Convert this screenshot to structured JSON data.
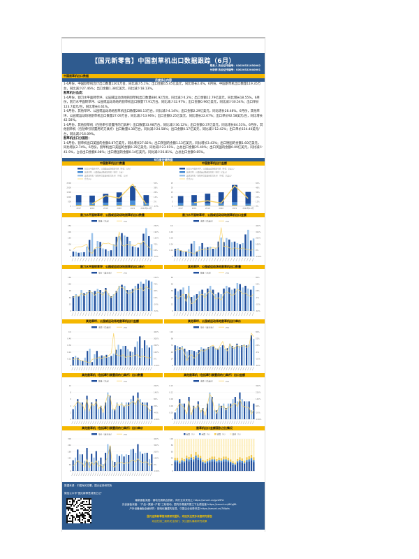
{
  "header": {
    "title": "【国元新零售】中国割草机出口数据跟踪（6月）",
    "analyst1": "联系人 执业证书编号：S0020521050002",
    "analyst2": "分析师 执业证书编号：S0020522040001"
  },
  "section_title": "中国割草机出口数据",
  "core_title": "月度核心内容",
  "paragraphs": [
    {
      "bold": false,
      "text": "1-6月份，中国割草机合计出口数量1201万台，同比减少5.1%；出口金额15.45亿美元，同比增长2.4%。6月份，中国割草机出口数量119.35万台，同比减少27.46%；出口金额1.38亿美元，同比减少18.13%。"
    },
    {
      "bold": true,
      "text": "割草机分品类："
    },
    {
      "bold": false,
      "text": "1-6月份，割刀水平面转草坪、公园或运动场地的割草机出口数量880.92万台，同比减少4.2%；出口金额12.79亿美元，同比增长18.55%。6月份，割刀水平面转草坪、公园或运动场地的割草机出口数量77.91万台，同比减少32.97%；出口金额0.96亿美元，同比减少30.54%；出口单价123.7美元/台，同比增长4.61%。"
    },
    {
      "bold": false,
      "text": "1-6月份，其他草坪、公园或运动场地割草机出口数量286.13万台，同比减少4.14%；出口金额2.29亿美元，同比增长28.48%。6月份，其他草坪、公园或运动场地割草机出口数量27.09万台，同比减少13.96%；出口金额0.25亿美元，同比增长22.67%；出口单价92.58美元/台，同比增长42.58%。"
    },
    {
      "bold": false,
      "text": "1-6月份，其他割草机（包括牵引装置用的刀具杆）出口数量33.98万台，同比减少36.12%；出口金额0.37亿美元，同比增长84.51%。6月份，其他割草机（包括牵引装置用的刀具杆）出口数量4.38万台，同比减少24.58%；出口金额0.17亿美元，同比减少12.42%；出口单价154.40美元/台，同比减少16.09%。"
    },
    {
      "bold": true,
      "text": "割草机出口分国别："
    },
    {
      "bold": false,
      "text": "1-6月份，割草机出口美国的金额8.87亿美元，同比增长27.82%；出口英国的金额1.13亿美元，同比增长3.43%；出口德国的金额1.60亿美元，同比增长2.74%。6月份，割草机出口美国的金额0.35亿美元，同比减少23.91%，占总出口金额25.49%；出口英国的金额0.09亿美元，同比减少41.9%，占总出口金额6.08%；出口德国的金额0.14亿美元，同比减少26.81%，占总出口金额9.85%。"
    }
  ],
  "key_data_title": "6月度关键数据",
  "chart_data": [
    {
      "id": "c0",
      "type": "bar",
      "stacked": true,
      "title": "中国割草机出口数量",
      "categories": [
        "2017",
        "2018",
        "2019",
        "2020",
        "2021",
        "2022年1-6月"
      ],
      "series": [
        {
          "name": "其他割草机（包括牵引装置用的刀具杆）（单位：万台）",
          "values": [
            100,
            90,
            80,
            90,
            100,
            40
          ]
        },
        {
          "name": "其他草坪、公园或运动场地割草机（单位：万台）",
          "values": [
            300,
            300,
            300,
            350,
            500,
            300
          ]
        },
        {
          "name": "割刀水平面转草坪、公园或运动场地割草机（单位：万台）",
          "values": [
            800,
            750,
            950,
            1050,
            1600,
            860
          ]
        }
      ],
      "line": {
        "name": "合计yoy",
        "values": [
          null,
          -4,
          17,
          11,
          47,
          -5
        ]
      },
      "ylim": [
        0,
        2500
      ],
      "y2lim": [
        -10,
        50
      ]
    },
    {
      "id": "c1",
      "type": "bar",
      "stacked": true,
      "title": "中国割草机出口金额",
      "categories": [
        "2017",
        "2018",
        "2019",
        "2020",
        "2021",
        "2022年1-6月"
      ],
      "series": [
        {
          "name": "其他割草机（包括牵引装置用的刀具杆）（单位：亿美元）",
          "values": [
            0.4,
            0.5,
            0.5,
            0.5,
            0.8,
            0.4
          ]
        },
        {
          "name": "其他草坪、公园或运动场地割草机（单位：亿美元）",
          "values": [
            3,
            3.5,
            2.5,
            2.3,
            3.5,
            2.2
          ]
        },
        {
          "name": "割刀水平面转草坪、公园或运动场地割草机（单位：亿美元）",
          "values": [
            7.5,
            8,
            10.5,
            12.2,
            18.7,
            12.8
          ]
        }
      ],
      "line": {
        "name": "合计yoy",
        "values": [
          null,
          9,
          14,
          8,
          53,
          20
        ]
      },
      "ylim": [
        0,
        25
      ],
      "y2lim": [
        0,
        60
      ]
    },
    {
      "id": "c2",
      "type": "bar",
      "title": "割刀水平面转草坪、公园或运动场地割草机出口数量",
      "series": [
        {
          "name": "数量（万台）",
          "values": [
            40,
            38,
            30,
            33,
            35,
            80,
            135,
            190,
            60,
            125,
            118,
            65,
            58,
            45,
            50,
            100,
            160,
            165,
            190,
            170,
            160,
            125,
            82,
            78,
            72,
            110,
            185,
            230,
            165,
            100
          ]
        }
      ],
      "line": {
        "name": "yoy",
        "values": [
          20,
          40,
          45,
          45,
          55,
          70,
          -5,
          -20,
          30,
          40,
          35,
          80,
          75,
          80,
          70,
          60,
          50,
          190,
          60,
          50,
          70,
          60,
          60,
          55,
          80,
          70,
          100,
          60,
          40,
          10
        ]
      },
      "ylim": [
        0,
        250
      ],
      "y2lim": [
        -50,
        250
      ]
    },
    {
      "id": "c3",
      "type": "bar",
      "title": "割刀水平面转草坪、公园或运动场地割草机出口金额",
      "series": [
        {
          "name": "金额（亿美元）",
          "values": [
            0.15,
            0.16,
            0.12,
            0.1,
            0.09,
            0.14,
            0.25,
            0.3,
            0.1,
            0.2,
            0.26,
            0.17,
            0.18,
            0.19,
            0.15,
            0.17,
            0.29,
            0.37,
            0.28,
            0.36,
            0.33,
            0.28,
            0.29,
            0.26,
            0.24,
            0.26,
            0.43,
            0.52,
            0.31,
            0.35
          ]
        }
      ],
      "line": {
        "name": "yoy",
        "values": [
          0,
          10,
          -5,
          -20,
          -15,
          -40,
          -40,
          -60,
          -20,
          0,
          10,
          20,
          15,
          30,
          50,
          30,
          60,
          370,
          60,
          70,
          40,
          20,
          40,
          30,
          20,
          40,
          20,
          10,
          0,
          10
        ]
      },
      "ylim": [
        0,
        0.6
      ],
      "y2lim": [
        -100,
        400
      ]
    },
    {
      "id": "c4",
      "type": "bar",
      "title": "割刀水平面转草坪、公园或运动场地割草机出口单价",
      "series": [
        {
          "name": "单价（美元/台）",
          "values": [
            70,
            80,
            70,
            100,
            85,
            90,
            100,
            90,
            95,
            105,
            100,
            90,
            110,
            85,
            70,
            80,
            95,
            120,
            125,
            120,
            100,
            100,
            105,
            120,
            130,
            140,
            130,
            150,
            145,
            140
          ]
        }
      ],
      "line": {
        "name": "yoy",
        "values": [
          10,
          20,
          15,
          30,
          20,
          25,
          40,
          30,
          20,
          35,
          30,
          20,
          45,
          25,
          10,
          20,
          35,
          60,
          55,
          50,
          30,
          30,
          35,
          50,
          45,
          55,
          40,
          60,
          50,
          45
        ]
      },
      "ylim": [
        0,
        160
      ],
      "y2lim": [
        -50,
        100
      ]
    },
    {
      "id": "c5",
      "type": "bar",
      "title": "其他草坪、公园或运动场地割草机出口数量",
      "series": [
        {
          "name": "数量（万台）",
          "values": [
            40,
            35,
            38,
            42,
            30,
            45,
            25,
            28,
            30,
            35,
            38,
            32,
            40,
            45,
            38,
            30,
            33,
            30,
            40,
            45,
            42,
            38,
            40,
            50,
            48,
            42,
            45,
            40,
            38,
            45
          ]
        }
      ],
      "line": {
        "name": "yoy",
        "values": [
          5,
          -10,
          0,
          10,
          -20,
          15,
          -30,
          -25,
          -10,
          5,
          10,
          -5,
          15,
          25,
          10,
          -10,
          -5,
          -15,
          10,
          20,
          15,
          5,
          10,
          30,
          25,
          10,
          15,
          5,
          0,
          10
        ]
      },
      "ylim": [
        0,
        60
      ],
      "y2lim": [
        -60,
        80
      ]
    },
    {
      "id": "c6",
      "type": "bar",
      "title": "其他草坪、公园或运动场地割草机出口金额",
      "series": [
        {
          "name": "金额（亿美元）",
          "values": [
            0.15,
            0.17,
            0.14,
            0.1,
            0.08,
            0.14,
            0.26,
            0.3,
            0.06,
            0.2,
            0.26,
            0.16,
            0.18,
            0.17,
            0.19,
            0.15,
            0.17,
            0.21,
            0.28,
            0.37,
            0.29,
            0.35,
            0.35,
            0.29,
            0.25,
            0.24,
            0.33,
            0.43,
            0.52,
            0.31,
            0.45,
            0.36,
            0.32,
            0.36
          ]
        }
      ],
      "line": {
        "name": "yoy",
        "values": [
          -10,
          0,
          -5,
          -20,
          -30,
          -40,
          -50,
          -60,
          -10,
          0,
          10,
          20,
          0,
          30,
          20,
          50,
          80,
          380,
          60,
          50,
          40,
          60,
          20,
          40,
          30,
          40,
          50,
          60,
          20,
          40,
          30,
          20,
          10,
          30
        ]
      },
      "ylim": [
        0,
        0.6
      ],
      "y2lim": [
        -100,
        400
      ]
    },
    {
      "id": "c7",
      "type": "bar",
      "title": "其他草坪、公园或运动场地割草机出口单价",
      "series": [
        {
          "name": "单价（美元/台）",
          "values": [
            72,
            70,
            65,
            70,
            60,
            50,
            55,
            55,
            52,
            48,
            55,
            65,
            60,
            60,
            65,
            70,
            68,
            62,
            60,
            65,
            72,
            60,
            62,
            78,
            70,
            65,
            78,
            70,
            72,
            75,
            72,
            75,
            108,
            95
          ]
        }
      ],
      "line": {
        "name": "yoy",
        "values": [
          0,
          10,
          5,
          15,
          -10,
          -40,
          -20,
          -15,
          -30,
          -20,
          -10,
          5,
          0,
          5,
          10,
          20,
          25,
          10,
          5,
          25,
          40,
          10,
          0,
          30,
          15,
          10,
          25,
          15,
          20,
          25,
          15,
          20,
          75,
          60
        ]
      },
      "ylim": [
        0,
        120
      ],
      "y2lim": [
        -60,
        80
      ]
    },
    {
      "id": "c8",
      "type": "bar",
      "title": "其他割草机（包括牵引装置用的刀具杆）出口数量",
      "series": [
        {
          "name": "数量（万台）",
          "values": [
            3,
            4,
            6,
            5,
            5,
            3,
            7,
            3,
            5,
            4,
            6,
            3,
            4,
            2,
            5,
            8,
            7,
            3,
            3,
            5,
            4,
            5,
            4,
            5,
            5,
            6,
            7,
            5,
            8,
            6,
            5,
            5,
            5,
            3,
            4
          ]
        }
      ],
      "line": {
        "name": "yoy",
        "values": [
          10,
          30,
          60,
          40,
          30,
          -20,
          80,
          -30,
          40,
          20,
          60,
          -10,
          20,
          -40,
          50,
          120,
          100,
          0,
          -20,
          40,
          20,
          40,
          10,
          30,
          20,
          50,
          60,
          30,
          90,
          40,
          30,
          20,
          20,
          -30,
          -10
        ]
      },
      "ylim": [
        0,
        10
      ],
      "y2lim": [
        -100,
        200
      ]
    },
    {
      "id": "c9",
      "type": "bar",
      "title": "其他割草机（包括牵引装置用的刀具杆）出口金额",
      "series": [
        {
          "name": "金额（亿美元）",
          "values": [
            0.03,
            0.05,
            0.09,
            0.07,
            0.07,
            0.03,
            0.1,
            0.03,
            0.06,
            0.05,
            0.08,
            0.04,
            0.05,
            0.02,
            0.07,
            0.12,
            0.1,
            0.04,
            0.04,
            0.07,
            0.06,
            0.07,
            0.05,
            0.07,
            0.07,
            0.09,
            0.1,
            0.08,
            0.12,
            0.09,
            0.08,
            0.08,
            0.08,
            0.04,
            0.07
          ]
        }
      ],
      "line": {
        "name": "yoy",
        "values": [
          0,
          40,
          90,
          60,
          40,
          -40,
          120,
          -50,
          50,
          30,
          80,
          -20,
          30,
          -60,
          80,
          200,
          150,
          20,
          -30,
          60,
          40,
          60,
          10,
          50,
          40,
          80,
          90,
          50,
          140,
          60,
          50,
          40,
          40,
          -40,
          10
        ]
      },
      "ylim": [
        0,
        0.15
      ],
      "y2lim": [
        -100,
        300
      ]
    },
    {
      "id": "c10",
      "type": "bar",
      "title": "其他割草机（包括牵引装置用的刀具杆）出口单价",
      "series": [
        {
          "name": "单价（美元/台）",
          "values": [
            100,
            125,
            200,
            155,
            155,
            95,
            215,
            85,
            160,
            125,
            185,
            95,
            125,
            65,
            170,
            250,
            230,
            95,
            85,
            155,
            140,
            155,
            135,
            155,
            150,
            200,
            205,
            170,
            250,
            180,
            160,
            170,
            170,
            110,
            155
          ]
        }
      ],
      "line": {
        "name": "yoy",
        "values": [
          -20,
          10,
          60,
          30,
          20,
          -40,
          80,
          -50,
          40,
          -10,
          60,
          -30,
          0,
          -60,
          50,
          120,
          300,
          -20,
          -40,
          30,
          20,
          40,
          10,
          30,
          20,
          60,
          70,
          40,
          90,
          50,
          30,
          40,
          40,
          -20,
          20
        ]
      },
      "ylim": [
        0,
        300
      ],
      "y2lim": [
        -100,
        400
      ]
    },
    {
      "id": "c11",
      "type": "stacked-percent",
      "title": "割草机出口金额国别占比情况",
      "series": [
        {
          "name": "美国（%）",
          "values": [
            28,
            28,
            22,
            28,
            26,
            33,
            30,
            35,
            30,
            40,
            35,
            33,
            25,
            22,
            25,
            28,
            30,
            30,
            25,
            28,
            27,
            30,
            30,
            28,
            25,
            20,
            18,
            25,
            28,
            26,
            22,
            28,
            30,
            33,
            28
          ]
        },
        {
          "name": "英国（%）",
          "values": [
            5,
            5,
            4,
            5,
            4,
            6,
            6,
            7,
            6,
            8,
            7,
            6,
            4,
            4,
            5,
            5,
            6,
            6,
            5,
            6,
            5,
            6,
            6,
            5,
            4,
            4,
            3,
            5,
            6,
            5,
            4,
            6,
            6,
            7,
            6
          ]
        },
        {
          "name": "德国（%）",
          "values": [
            8,
            8,
            6,
            8,
            7,
            9,
            8,
            10,
            8,
            11,
            9,
            8,
            6,
            6,
            7,
            8,
            9,
            9,
            7,
            8,
            8,
            9,
            9,
            8,
            7,
            6,
            5,
            7,
            9,
            8,
            6,
            9,
            10,
            10,
            9
          ]
        },
        {
          "name": "其他（%）",
          "values": [
            59,
            59,
            68,
            59,
            63,
            52,
            56,
            48,
            56,
            41,
            49,
            53,
            65,
            68,
            63,
            59,
            55,
            55,
            63,
            58,
            60,
            55,
            55,
            59,
            64,
            70,
            74,
            63,
            57,
            61,
            68,
            57,
            54,
            50,
            57
          ]
        }
      ],
      "ylim": [
        0,
        100
      ]
    }
  ],
  "footer": {
    "source": "数据来源：中国海关总署，国元证券研究所",
    "wechat": "微信公众号“国元新零售消费之记”",
    "line1": "最新面板深度：钢电光扬帆启航新，向行业未来而上 https://smart.cn/gvd9FA",
    "line2": "光伏面板深度：“产品+渠道+产能”三轮驱动，国内外赛道共振之下业绩加速 https://smart.cn/6KpJ8L",
    "line3": "户外设备面板全面研究：钢电化器建构至易，中国企业优势尽显 https://smart.cn/7Wpfa",
    "highlight": "国元证券新零售消费研究团队，欢迎关注更多深度研究报告",
    "invite": "欢迎扫描二维码关注我们，关注团队最新研究成果"
  },
  "colors": {
    "navy": "#2f5b8f",
    "yellow": "#f5b800",
    "bar_dark": "#1f4e9c",
    "bar_mid": "#3f85d0",
    "bar_light": "#9cc3ea",
    "line": "#f8d36a"
  }
}
